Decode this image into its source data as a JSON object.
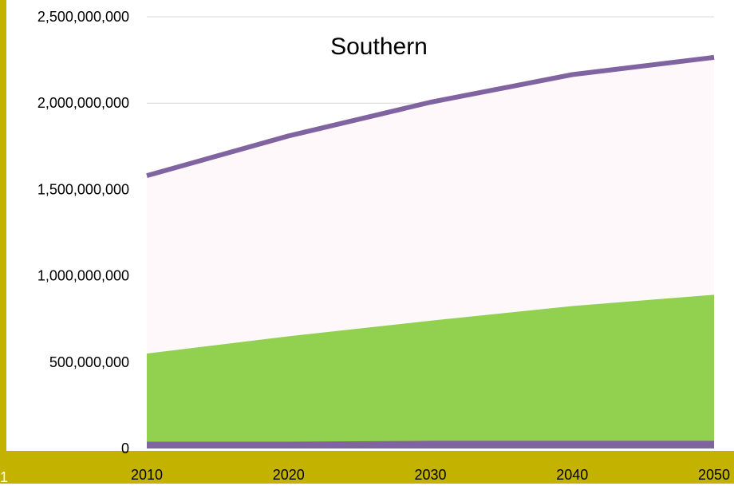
{
  "slide": {
    "number": "1"
  },
  "colors": {
    "background": "#ffffff",
    "band": "#c4b200",
    "top_series_fill": "#fef8fb",
    "middle_series_fill": "#92d050",
    "line": "#8064a2",
    "gridline": "#d9d9d9"
  },
  "chart_data": {
    "type": "area",
    "title": "Southern",
    "xlabel": "",
    "ylabel": "",
    "x": [
      2010,
      2020,
      2030,
      2040,
      2050
    ],
    "x_tick_labels": [
      "2010",
      "2020",
      "2030",
      "2040",
      "2050"
    ],
    "ylim": [
      0,
      2500000000
    ],
    "y_ticks": [
      0,
      500000000,
      1000000000,
      1500000000,
      2000000000,
      2500000000
    ],
    "y_tick_labels": [
      "0",
      "500,000,000",
      "1,000,000,000",
      "1,500,000,000",
      "2,000,000,000",
      "2,500,000,000"
    ],
    "grid": true,
    "legend": "none",
    "series": [
      {
        "values": [
          30000000,
          30000000,
          35000000,
          35000000,
          35000000
        ],
        "style": "line-band"
      },
      {
        "values": [
          550000000,
          650000000,
          740000000,
          825000000,
          890000000
        ],
        "style": "area"
      },
      {
        "values": [
          1580000000,
          1810000000,
          2005000000,
          2165000000,
          2265000000
        ],
        "style": "area-with-line"
      }
    ]
  }
}
